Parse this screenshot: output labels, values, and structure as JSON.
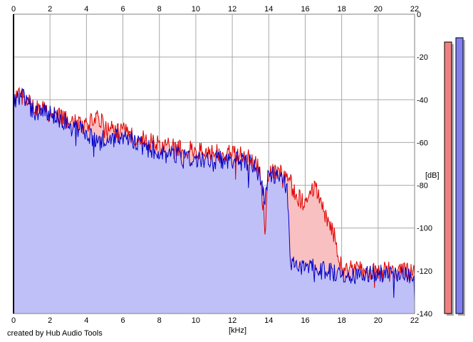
{
  "credit": "created by Hub Audio Tools",
  "chart_data": {
    "type": "area",
    "xlabel": "[kHz]",
    "ylabel": "[dB]",
    "xlim": [
      0,
      22
    ],
    "ylim": [
      -140,
      0
    ],
    "xticks": [
      "0",
      "2",
      "4",
      "6",
      "8",
      "10",
      "12",
      "14",
      "16",
      "18",
      "20",
      "22"
    ],
    "yticks": [
      "0",
      "-20",
      "-40",
      "-60",
      "-80",
      "-100",
      "-120",
      "-140"
    ],
    "grid": true,
    "colors": {
      "red": "#e00000",
      "blue": "#0000c8",
      "blue_fill": "#c0c0f8",
      "red_fill": "#f8c0c0"
    },
    "series": [
      {
        "color": "red",
        "x": [
          0,
          0.5,
          1,
          2,
          3,
          4,
          4.7,
          5,
          6,
          7,
          8,
          9,
          10,
          11,
          12,
          13,
          13.5,
          13.8,
          14,
          15,
          15.5,
          16,
          16.5,
          17,
          17.5,
          18,
          19,
          20,
          21,
          22
        ],
        "y": [
          -40,
          -38,
          -43,
          -46,
          -50,
          -52,
          -48,
          -54,
          -55,
          -58,
          -61,
          -63,
          -64,
          -65,
          -65,
          -68,
          -73,
          -100,
          -72,
          -75,
          -85,
          -88,
          -80,
          -92,
          -100,
          -119,
          -120,
          -120,
          -120,
          -121
        ]
      },
      {
        "color": "blue",
        "x": [
          0,
          0.5,
          1,
          2,
          3,
          4,
          4.7,
          5,
          6,
          7,
          8,
          9,
          10,
          11,
          12,
          13,
          13.5,
          13.8,
          14,
          15,
          15.2,
          15.5,
          16,
          17,
          18,
          19,
          20,
          21,
          22
        ],
        "y": [
          -40,
          -37,
          -45,
          -47,
          -51,
          -55,
          -60,
          -58,
          -58,
          -60,
          -65,
          -66,
          -67,
          -68,
          -68,
          -70,
          -75,
          -85,
          -74,
          -80,
          -115,
          -117,
          -118,
          -120,
          -121,
          -122,
          -121,
          -121,
          -122
        ]
      }
    ],
    "level_meters": [
      {
        "color": "red",
        "value_db": -13
      },
      {
        "color": "blue",
        "value_db": -11
      }
    ]
  }
}
